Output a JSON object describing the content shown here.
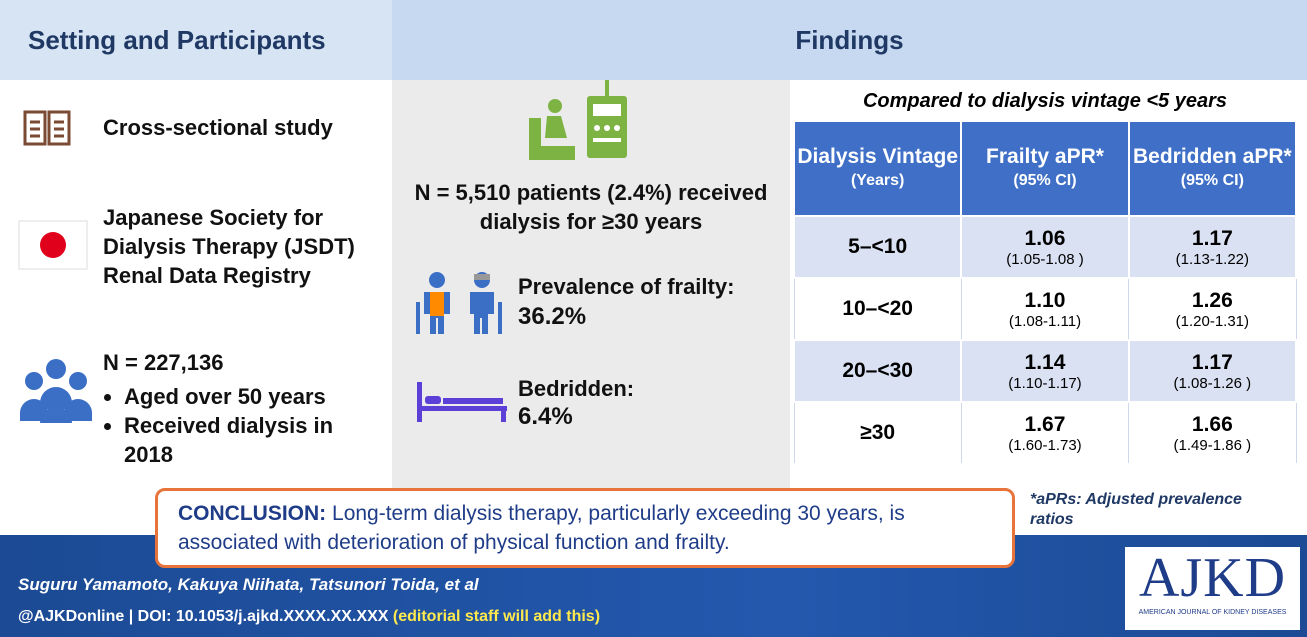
{
  "header": {
    "left_title": "Setting and Participants",
    "right_title": "Findings"
  },
  "setting": {
    "study_design": "Cross-sectional study",
    "registry": "Japanese Society for Dialysis Therapy (JSDT) Renal Data Registry",
    "population": "N = 227,136",
    "criteria": [
      "Aged over 50 years",
      "Received dialysis in 2018"
    ]
  },
  "findings": {
    "cohort": "N = 5,510 patients (2.4%) received dialysis for ≥30 years",
    "frailty_label": "Prevalence of frailty:",
    "frailty_value": "36.2%",
    "bedridden_label": "Bedridden:",
    "bedridden_value": "6.4%"
  },
  "table": {
    "caption": "Compared to dialysis vintage <5 years",
    "columns": [
      {
        "title": "Dialysis Vintage",
        "sub": "(Years)"
      },
      {
        "title": "Frailty aPR*",
        "sub": "(95% CI)"
      },
      {
        "title": "Bedridden aPR*",
        "sub": "(95% CI)"
      }
    ],
    "rows": [
      {
        "vintage": "5–<10",
        "frailty": "1.06",
        "frailty_ci": "(1.05-1.08 )",
        "bedridden": "1.17",
        "bedridden_ci": "(1.13-1.22)"
      },
      {
        "vintage": "10–<20",
        "frailty": "1.10",
        "frailty_ci": "(1.08-1.11)",
        "bedridden": "1.26",
        "bedridden_ci": "(1.20-1.31)"
      },
      {
        "vintage": "20–<30",
        "frailty": "1.14",
        "frailty_ci": "(1.10-1.17)",
        "bedridden": "1.17",
        "bedridden_ci": "(1.08-1.26 )"
      },
      {
        "vintage": "≥30",
        "frailty": "1.67",
        "frailty_ci": "(1.60-1.73)",
        "bedridden": "1.66",
        "bedridden_ci": "(1.49-1.86 )"
      }
    ]
  },
  "conclusion": {
    "label": "CONCLUSION:",
    "text": "Long-term dialysis therapy, particularly exceeding 30 years, is associated with deterioration of physical function and frailty."
  },
  "footnote": "*aPRs: Adjusted prevalence ratios",
  "footer": {
    "authors": "Suguru Yamamoto, Kakuya Niihata, Tatsunori Toida, et al",
    "doi": "@AJKDonline | DOI: 10.1053/j.ajkd.XXXX.XX.XXX",
    "note": "(editorial staff will add this)"
  },
  "logo": {
    "name": "AJKD",
    "subtitle": "AMERICAN JOURNAL OF KIDNEY DISEASES"
  }
}
